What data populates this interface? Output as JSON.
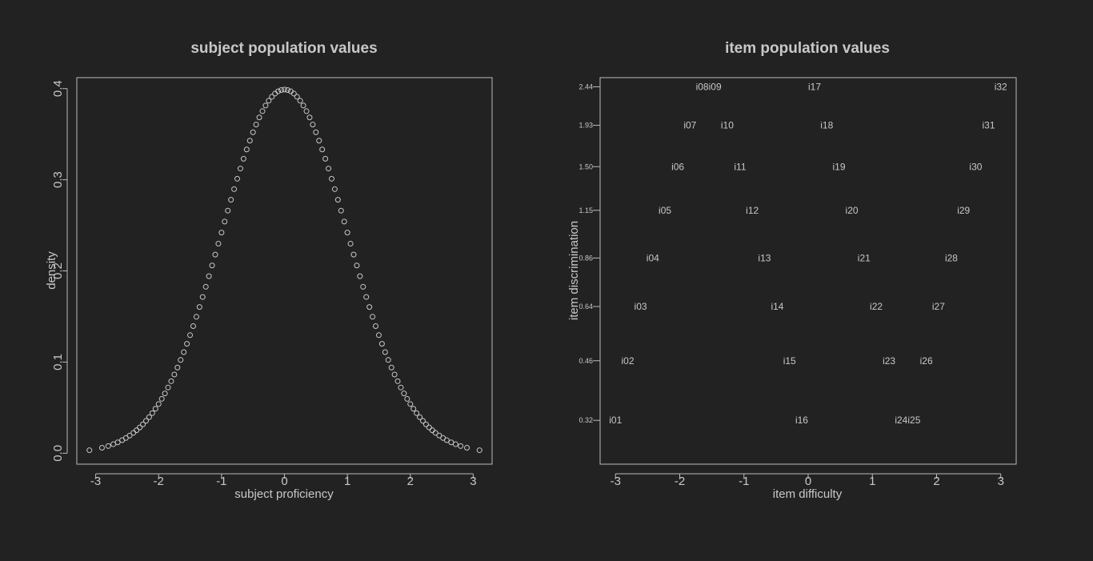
{
  "background": "#222222",
  "foreground": "#c8c8c8",
  "chart_data": [
    {
      "type": "scatter",
      "title": "subject population values",
      "xlabel": "subject proficiency",
      "ylabel": "density",
      "xlim": [
        -3.3,
        3.3
      ],
      "ylim": [
        -0.012,
        0.412
      ],
      "xticks": [
        -3,
        -2,
        -1,
        0,
        1,
        2,
        3
      ],
      "xtick_labels": [
        "-3",
        "-2",
        "-1",
        "0",
        "1",
        "2",
        "3"
      ],
      "yticks": [
        0.0,
        0.1,
        0.2,
        0.3,
        0.4
      ],
      "ytick_labels": [
        "0.0",
        "0.1",
        "0.2",
        "0.3",
        "0.4"
      ],
      "grid": false,
      "marker": "open-circle",
      "series": [
        {
          "description": "standard normal density evaluated at sampled proficiencies",
          "x": [
            -3.1,
            -2.9,
            -2.8,
            -2.72,
            -2.65,
            -2.58,
            -2.52,
            -2.46,
            -2.4,
            -2.35,
            -2.3,
            -2.25,
            -2.2,
            -2.15,
            -2.1,
            -2.05,
            -2.0,
            -1.95,
            -1.9,
            -1.85,
            -1.8,
            -1.75,
            -1.7,
            -1.65,
            -1.6,
            -1.55,
            -1.5,
            -1.45,
            -1.4,
            -1.35,
            -1.3,
            -1.25,
            -1.2,
            -1.15,
            -1.1,
            -1.05,
            -1.0,
            -0.95,
            -0.9,
            -0.85,
            -0.8,
            -0.75,
            -0.7,
            -0.65,
            -0.6,
            -0.55,
            -0.5,
            -0.45,
            -0.4,
            -0.35,
            -0.3,
            -0.25,
            -0.2,
            -0.15,
            -0.1,
            -0.05,
            0.0,
            0.05,
            0.1,
            0.15,
            0.2,
            0.25,
            0.3,
            0.35,
            0.4,
            0.45,
            0.5,
            0.55,
            0.6,
            0.65,
            0.7,
            0.75,
            0.8,
            0.85,
            0.9,
            0.95,
            1.0,
            1.05,
            1.1,
            1.15,
            1.2,
            1.25,
            1.3,
            1.35,
            1.4,
            1.45,
            1.5,
            1.55,
            1.6,
            1.65,
            1.7,
            1.75,
            1.8,
            1.85,
            1.9,
            1.95,
            2.0,
            2.05,
            2.1,
            2.15,
            2.2,
            2.25,
            2.3,
            2.35,
            2.4,
            2.46,
            2.52,
            2.58,
            2.65,
            2.72,
            2.8,
            2.9,
            3.1
          ],
          "y": [
            0.0033,
            0.006,
            0.0079,
            0.0099,
            0.0119,
            0.0143,
            0.0167,
            0.0194,
            0.0224,
            0.0252,
            0.0283,
            0.0317,
            0.0355,
            0.0396,
            0.044,
            0.0488,
            0.054,
            0.0596,
            0.0656,
            0.0721,
            0.079,
            0.0863,
            0.094,
            0.1023,
            0.1109,
            0.12,
            0.1295,
            0.1394,
            0.1497,
            0.1604,
            0.1714,
            0.1826,
            0.1942,
            0.2059,
            0.2179,
            0.2299,
            0.242,
            0.2541,
            0.2661,
            0.278,
            0.2897,
            0.3011,
            0.3123,
            0.323,
            0.3332,
            0.3429,
            0.3521,
            0.3605,
            0.3683,
            0.3752,
            0.3814,
            0.3867,
            0.391,
            0.3945,
            0.397,
            0.3984,
            0.3989,
            0.3984,
            0.397,
            0.3945,
            0.391,
            0.3867,
            0.3814,
            0.3752,
            0.3683,
            0.3605,
            0.3521,
            0.3429,
            0.3332,
            0.323,
            0.3123,
            0.3011,
            0.2897,
            0.278,
            0.2661,
            0.2541,
            0.242,
            0.2299,
            0.2179,
            0.2059,
            0.1942,
            0.1826,
            0.1714,
            0.1604,
            0.1497,
            0.1394,
            0.1295,
            0.12,
            0.1109,
            0.1023,
            0.094,
            0.0863,
            0.079,
            0.0721,
            0.0656,
            0.0596,
            0.054,
            0.0488,
            0.044,
            0.0396,
            0.0355,
            0.0317,
            0.0283,
            0.0252,
            0.0224,
            0.0194,
            0.0167,
            0.0143,
            0.0119,
            0.0099,
            0.0079,
            0.006,
            0.0033
          ]
        }
      ]
    },
    {
      "type": "scatter",
      "title": "item population values",
      "xlabel": "item difficulty",
      "ylabel": "item discrimination",
      "xlim": [
        -3.24,
        3.24
      ],
      "ylim": [
        0.245,
        2.58
      ],
      "xticks": [
        -3,
        -2,
        -1,
        0,
        1,
        2,
        3
      ],
      "xtick_labels": [
        "-3",
        "-2",
        "-1",
        "0",
        "1",
        "2",
        "3"
      ],
      "yticks": [
        0.32,
        0.46,
        0.64,
        0.86,
        1.15,
        1.5,
        1.93,
        2.44
      ],
      "ytick_labels": [
        "0.32",
        "0.46",
        "0.64",
        "0.86",
        "1.15",
        "1.50",
        "1.93",
        "2.44"
      ],
      "grid": false,
      "marker": "text-label",
      "points": [
        {
          "label": "i01",
          "x": -3.0,
          "y": 0.32
        },
        {
          "label": "i02",
          "x": -2.81,
          "y": 0.46
        },
        {
          "label": "i03",
          "x": -2.61,
          "y": 0.64
        },
        {
          "label": "i04",
          "x": -2.42,
          "y": 0.86
        },
        {
          "label": "i05",
          "x": -2.23,
          "y": 1.15
        },
        {
          "label": "i06",
          "x": -2.03,
          "y": 1.5
        },
        {
          "label": "i07",
          "x": -1.84,
          "y": 1.93
        },
        {
          "label": "i08",
          "x": -1.65,
          "y": 2.44
        },
        {
          "label": "i09",
          "x": -1.45,
          "y": 2.44
        },
        {
          "label": "i10",
          "x": -1.26,
          "y": 1.93
        },
        {
          "label": "i11",
          "x": -1.06,
          "y": 1.5
        },
        {
          "label": "i12",
          "x": -0.87,
          "y": 1.15
        },
        {
          "label": "i13",
          "x": -0.68,
          "y": 0.86
        },
        {
          "label": "i14",
          "x": -0.48,
          "y": 0.64
        },
        {
          "label": "i15",
          "x": -0.29,
          "y": 0.46
        },
        {
          "label": "i16",
          "x": -0.1,
          "y": 0.32
        },
        {
          "label": "i17",
          "x": 0.1,
          "y": 2.44
        },
        {
          "label": "i18",
          "x": 0.29,
          "y": 1.93
        },
        {
          "label": "i19",
          "x": 0.48,
          "y": 1.5
        },
        {
          "label": "i20",
          "x": 0.68,
          "y": 1.15
        },
        {
          "label": "i21",
          "x": 0.87,
          "y": 0.86
        },
        {
          "label": "i22",
          "x": 1.06,
          "y": 0.64
        },
        {
          "label": "i23",
          "x": 1.26,
          "y": 0.46
        },
        {
          "label": "i24",
          "x": 1.45,
          "y": 0.32
        },
        {
          "label": "i25",
          "x": 1.65,
          "y": 0.32
        },
        {
          "label": "i26",
          "x": 1.84,
          "y": 0.46
        },
        {
          "label": "i27",
          "x": 2.03,
          "y": 0.64
        },
        {
          "label": "i28",
          "x": 2.23,
          "y": 0.86
        },
        {
          "label": "i29",
          "x": 2.42,
          "y": 1.15
        },
        {
          "label": "i30",
          "x": 2.61,
          "y": 1.5
        },
        {
          "label": "i31",
          "x": 2.81,
          "y": 1.93
        },
        {
          "label": "i32",
          "x": 3.0,
          "y": 2.44
        }
      ]
    }
  ]
}
